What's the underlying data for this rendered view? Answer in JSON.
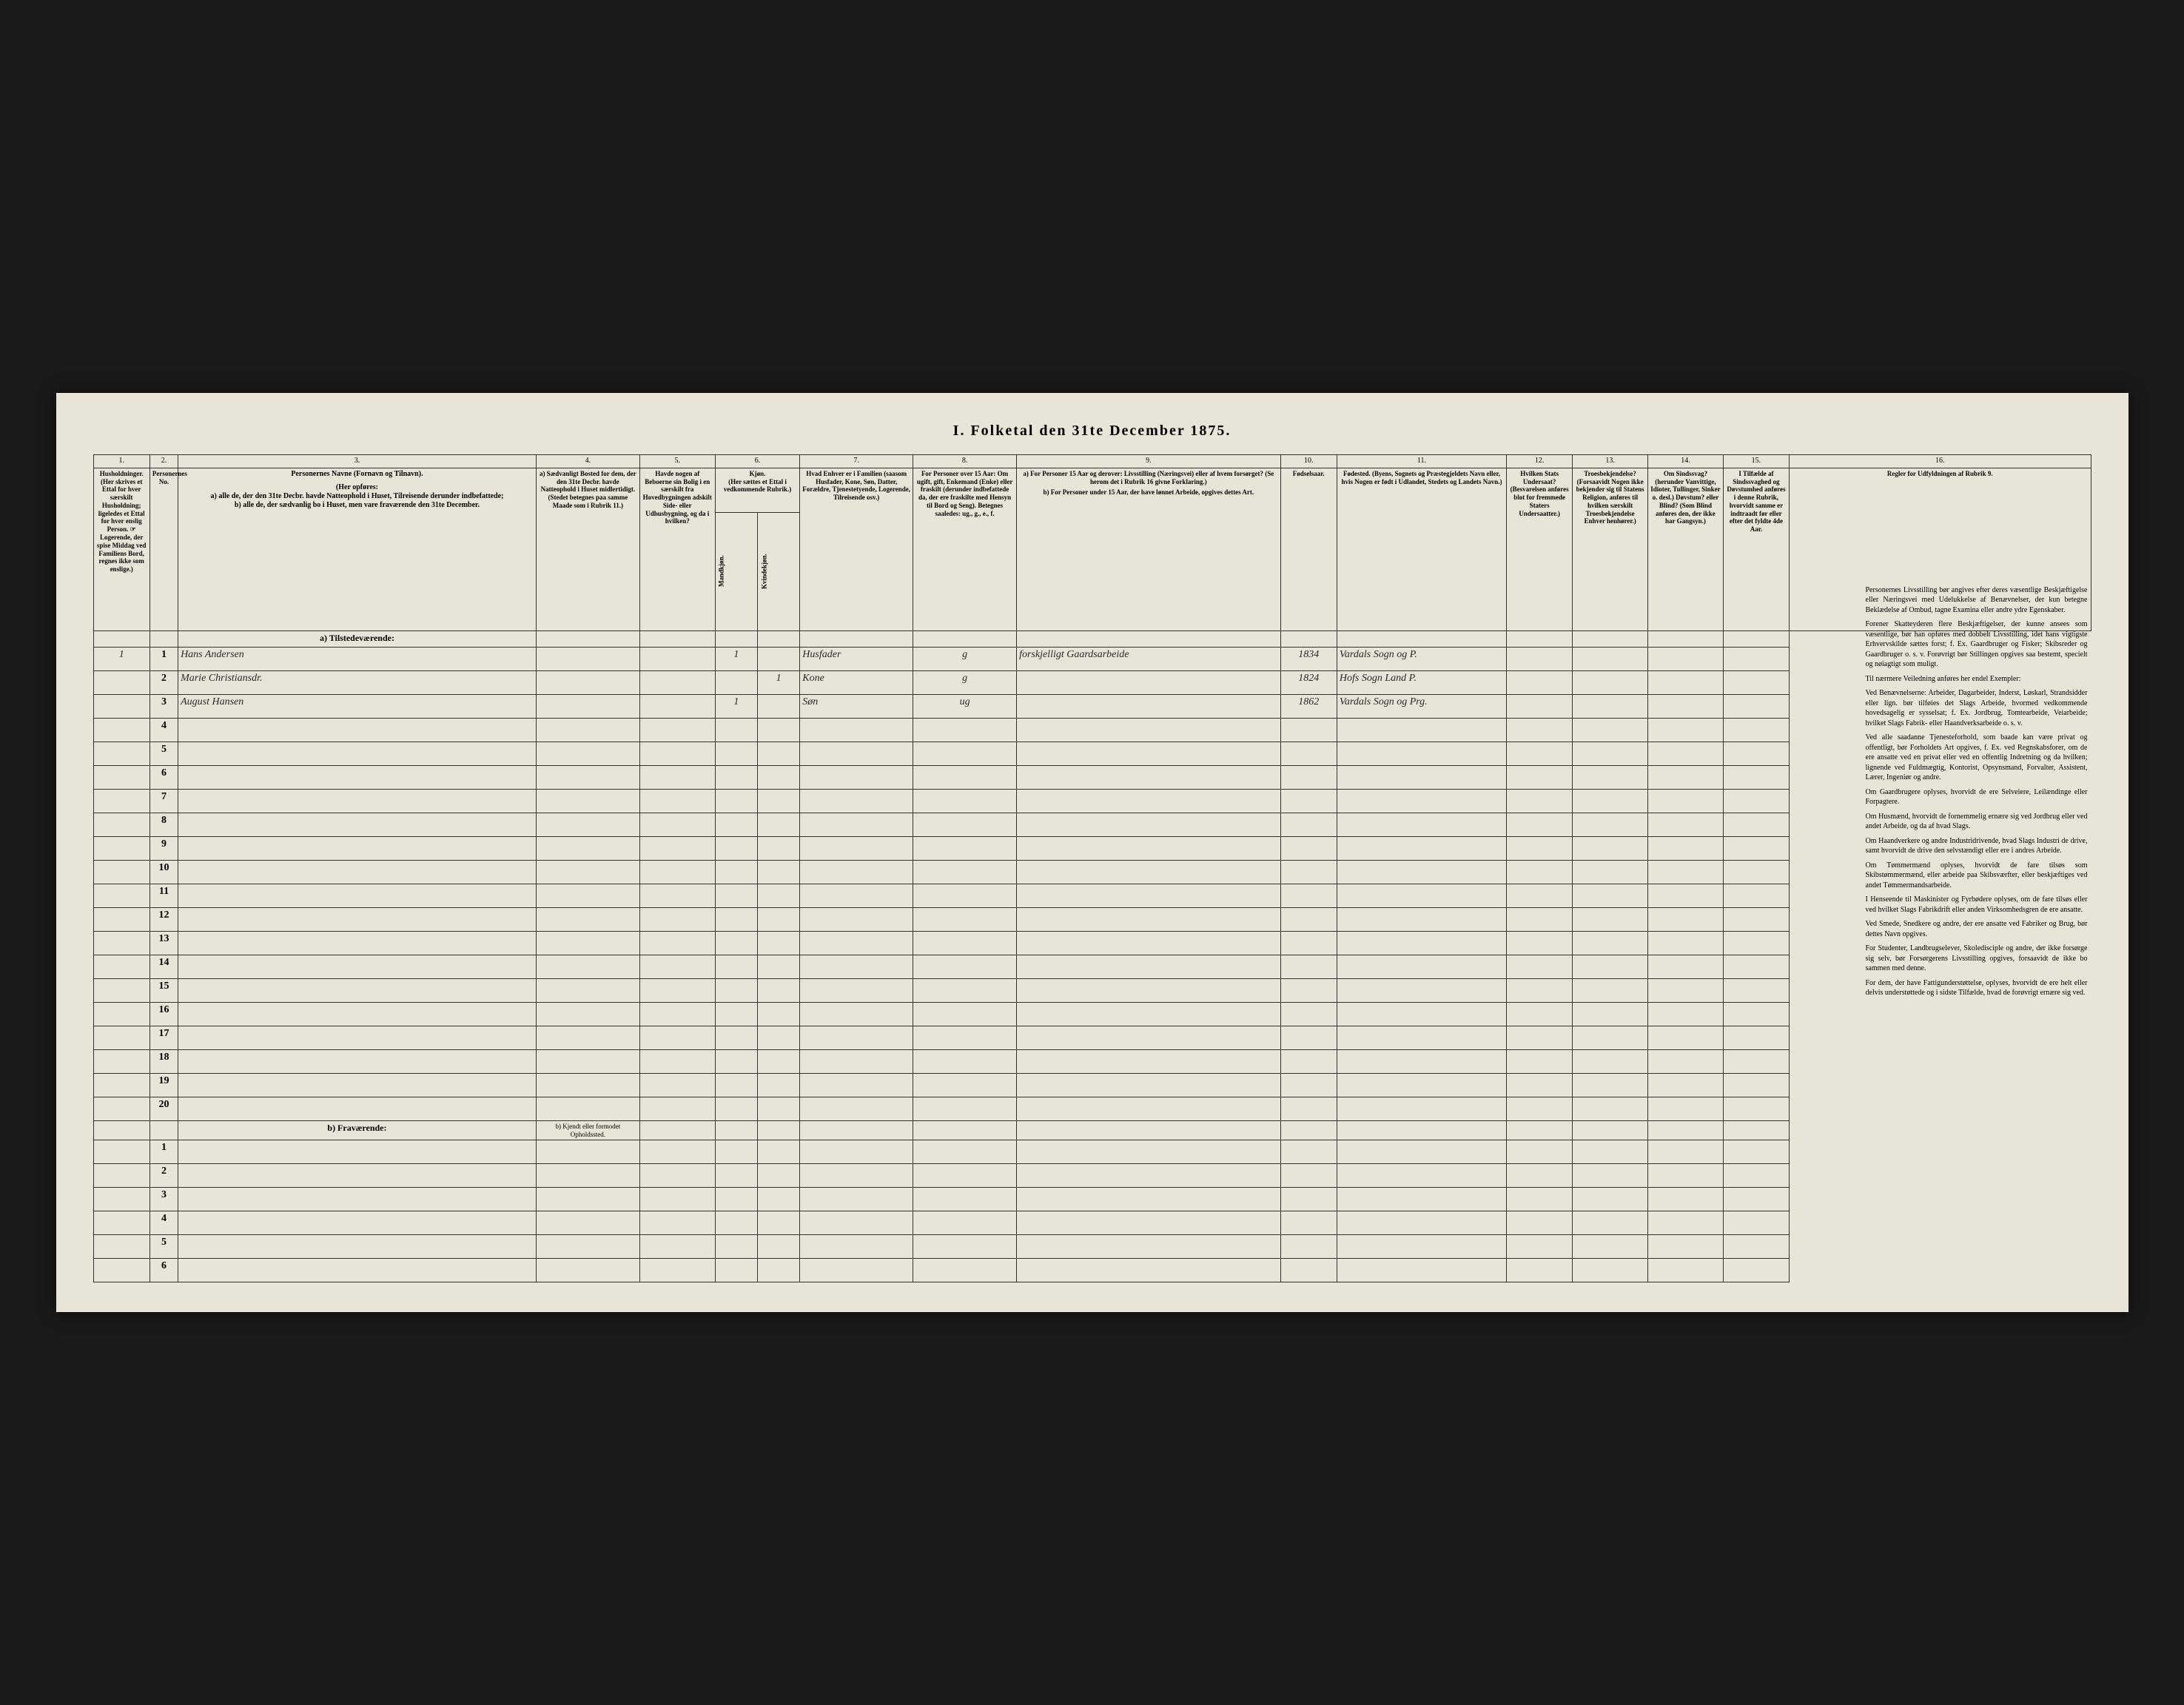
{
  "title": "I. Folketal den 31te December 1875.",
  "column_numbers": [
    "1.",
    "2.",
    "3.",
    "4.",
    "5.",
    "6.",
    "7.",
    "8.",
    "9.",
    "10.",
    "11.",
    "12.",
    "13.",
    "14.",
    "15.",
    "16."
  ],
  "headers": {
    "c1": "Husholdninger. (Her skrives et Ettal for hver særskilt Husholdning; ligeledes et Ettal for hver enslig Person. ☞ Logerende, der spise Middag ved Familiens Bord, regnes ikke som enslige.)",
    "c2": "Personernes No.",
    "c3_title": "Personernes Navne (Fornavn og Tilnavn).",
    "c3_sub_intro": "(Her opføres:",
    "c3_sub_a": "a) alle de, der den 31te Decbr. havde Natteophold i Huset, Tilreisende derunder indbefattede;",
    "c3_sub_b": "b) alle de, der sædvanlig bo i Huset, men vare fraværende den 31te December.",
    "c4": "a) Sædvanligt Bosted for dem, der den 31te Decbr. havde Natteophold i Huset midlertidigt. (Stedet betegnes paa samme Maade som i Rubrik 11.)",
    "c5": "Havde nogen af Beboerne sin Bolig i en særskilt fra Hovedbygningen adskilt Side- eller Udhusbygning, og da i hvilken?",
    "c6_title": "Kjøn.",
    "c6_sub": "(Her sættes et Ettal i vedkommende Rubrik.)",
    "c6m": "Mandkjøn.",
    "c6f": "Kvindekjøn.",
    "c7": "Hvad Enhver er i Familien (saasom Husfader, Kone, Søn, Datter, Forældre, Tjenestetyende, Logerende, Tilreisende osv.)",
    "c8": "For Personer over 15 Aar: Om ugift, gift, Enkemand (Enke) eller fraskilt (derunder indbefattede da, der ere fraskilte med Hensyn til Bord og Seng). Betegnes saaledes: ug., g., e., f.",
    "c9_a": "a) For Personer 15 Aar og derover: Livsstilling (Næringsvei) eller af hvem forsørget? (Se herom det i Rubrik 16 givne Forklaring.)",
    "c9_b": "b) For Personer under 15 Aar, der have lønnet Arbeide, opgives dettes Art.",
    "c10": "Fødselsaar.",
    "c11": "Fødested. (Byens, Sognets og Præstegjeldets Navn eller, hvis Nogen er født i Udlandet, Stedets og Landets Navn.)",
    "c12": "Hvilken Stats Undersaat? (Besvarelsen anføres blot for fremmede Staters Undersaatter.)",
    "c13": "Troesbekjendelse? (Forsaavidt Nogen ikke bekjender sig til Statens Religion, anføres til hvilken særskilt Troesbekjendelse Enhver henhører.)",
    "c14": "Om Sindssvag? (herunder Vanvittige, Idioter, Tullinger, Sinker o. desl.) Døvstum? eller Blind? (Som Blind anføres den, der ikke har Gangsyn.)",
    "c15": "I Tilfælde af Sindssvaghed og Døvstumhed anføres i denne Rubrik, hvorvidt samme er indtraadt før eller efter det fyldte 4de Aar.",
    "c16": "Regler for Udfyldningen af Rubrik 9."
  },
  "sections": {
    "present": "a) Tilstedeværende:",
    "absent": "b) Fraværende:",
    "absent_c4": "b) Kjendt eller formodet Opholdssted."
  },
  "present_count": 20,
  "absent_count": 6,
  "entries": [
    {
      "hh": "1",
      "num": "1",
      "name": "Hans Andersen",
      "sexM": "1",
      "sexF": "",
      "rel": "Husfader",
      "civ": "g",
      "occ": "forskjelligt Gaardsarbeide",
      "year": "1834",
      "place": "Vardals Sogn og P."
    },
    {
      "hh": "",
      "num": "2",
      "name": "Marie Christiansdr.",
      "sexM": "",
      "sexF": "1",
      "rel": "Kone",
      "civ": "g",
      "occ": "",
      "year": "1824",
      "place": "Hofs Sogn Land P."
    },
    {
      "hh": "",
      "num": "3",
      "name": "August Hansen",
      "sexM": "1",
      "sexF": "",
      "rel": "Søn",
      "civ": "ug",
      "occ": "",
      "year": "1862",
      "place": "Vardals Sogn og Prg."
    }
  ],
  "instructions": {
    "p1": "Personernes Livsstilling bør angives efter deres væsentlige Beskjæftigelse eller Næringsvei med Udelukkelse af Benævnelser, der kun betegne Beklædelse af Ombud, tagne Examina eller andre ydre Egenskaber.",
    "p2": "Forener Skatteyderen flere Beskjæftigelser, der kunne ansees som væsentlige, bør han opføres med dobbelt Livsstilling, idet hans vigtigste Erhvervskilde sættes forst; f. Ex. Gaardbruger og Fisker; Skibsreder og Gaardbruger o. s. v. Forøvrigt bør Stillingen opgives saa bestemt, specielt og nøiagtigt som muligt.",
    "p3": "Til nærmere Veiledning anføres her endel Exempler:",
    "p4": "Ved Benævnelserne: Arbeider, Dagarbeider, Inderst, Løskarl, Strandsidder eller lign. bør tilføies det Slags Arbeide, hvormed vedkommende hovedsagelig er sysselsat; f. Ex. Jordbrug, Tomtearbeide, Veiarbeide; hvilket Slags Fabrik- eller Haandverksarbeide o. s. v.",
    "p5": "Ved alle saadanne Tjenesteforhold, som baade kan være privat og offentligt, bør Forholdets Art opgives, f. Ex. ved Regnskabsforer, om de ere ansatte ved en privat eller ved en offentlig Indretning og da hvilken; lignende ved Fuldmægtig, Kontorist, Opsynsmand, Forvalter, Assistent, Lærer, Ingeniør og andre.",
    "p6": "Om Gaardbrugere oplyses, hvorvidt de ere Selveiere, Leilændinge eller Forpagtere.",
    "p7": "Om Husmænd, hvorvidt de fornemmelig ernære sig ved Jordbrug eller ved andet Arbeide, og da af hvad Slags.",
    "p8": "Om Haandverkere og andre Industridrivende, hvad Slags Industri de drive, samt hvorvidt de drive den selvstændigt eller ere i andres Arbeide.",
    "p9": "Om Tømmermænd oplyses, hvorvidt de fare tilsøs som Skibstømmermænd, eller arbeide paa Skibsværfter, eller beskjæftiges ved andet Tømmermandsarbeide.",
    "p10": "I Henseende til Maskinister og Fyrbødere oplyses, om de fare tilsøs eller ved hvilket Slags Fabrikdrift eller anden Virksomhedsgren de ere ansatte.",
    "p11": "Ved Smede, Snedkere og andre, der ere ansatte ved Fabriker og Brug, bør dettes Navn opgives.",
    "p12": "For Studenter, Landbrugselever, Skoledisciple og andre, der ikke forsørge sig selv, bør Forsørgerens Livsstilling opgives, forsaavidt de ikke bo sammen med denne.",
    "p13": "For dem, der have Fattigunderstøttelse, oplyses, hvorvidt de ere helt eller delvis understøttede og i sidste Tilfælde, hvad de forøvrigt ernære sig ved."
  },
  "colors": {
    "paper": "#e8e4d8",
    "ink": "#333333",
    "background": "#1a1a1a",
    "handwriting": "#2a2a2a"
  }
}
